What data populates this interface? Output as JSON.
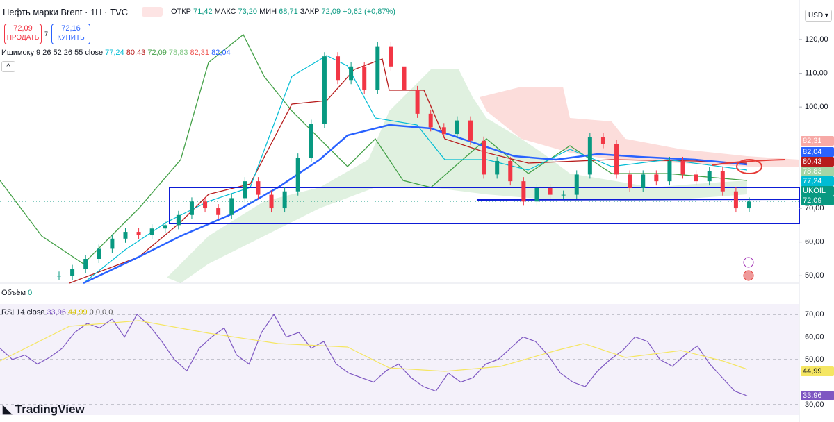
{
  "header": {
    "title": "Нефть марки Brent · 1Н · TVC",
    "ohlc": [
      {
        "label": "ОТКР",
        "value": "71,42"
      },
      {
        "label": "МАКС",
        "value": "73,20"
      },
      {
        "label": "МИН",
        "value": "68,71"
      },
      {
        "label": "ЗАКР",
        "value": "72,09"
      }
    ],
    "change": "+0,62 (+0,87%)",
    "currency": "USD"
  },
  "trade": {
    "sell_price": "72,09",
    "sell_label": "ПРОДАТЬ",
    "spread": "7",
    "buy_price": "72,16",
    "buy_label": "КУПИТЬ"
  },
  "ichimoku": {
    "name": "Ишимоку 9 26 52 26 55 close",
    "values": [
      "77,24",
      "80,43",
      "72,09",
      "78,83",
      "82,31",
      "82,04"
    ]
  },
  "volume": {
    "name": "Объём",
    "value": "0"
  },
  "rsi_legend": {
    "name": "RSI 14 close",
    "values": [
      "33,96",
      "44,99",
      "0",
      "0",
      "0",
      "0"
    ]
  },
  "price_labels": [
    {
      "text": "82,31",
      "color": "#f7a9a6"
    },
    {
      "text": "82,04",
      "color": "#2962ff"
    },
    {
      "text": "80,43",
      "color": "#b71c1c"
    },
    {
      "text": "78,83",
      "color": "#a5d6a7"
    },
    {
      "text": "77,24",
      "color": "#00bcd4"
    },
    {
      "text": "UKOIL",
      "color": "#089981"
    },
    {
      "text": "72,09",
      "color": "#089981"
    }
  ],
  "rsi_labels": [
    {
      "text": "44,99",
      "color": "#f5e663"
    },
    {
      "text": "33,96",
      "color": "#7e57c2"
    }
  ],
  "brand": "TradingView",
  "chart_data": {
    "type": "candlestick",
    "values": [
      50,
      52,
      55,
      58,
      61,
      63,
      62,
      64,
      65,
      68,
      72,
      70,
      68,
      73,
      78,
      74,
      70,
      75,
      85,
      95,
      115,
      108,
      112,
      105,
      118,
      112,
      105,
      98,
      94,
      92,
      96,
      90,
      80,
      84,
      78,
      72,
      76,
      74,
      74,
      80,
      91,
      89,
      80,
      76,
      80,
      78,
      84,
      80,
      78,
      81,
      75,
      70,
      72
    ],
    "ylim": [
      47.8,
      131.7
    ],
    "yticks": [
      {
        "value": 120,
        "label": "120,00"
      },
      {
        "value": 110,
        "label": "110,00"
      },
      {
        "value": 100,
        "label": "100,00"
      },
      {
        "value": 70,
        "label": "70,00"
      },
      {
        "value": 60,
        "label": "60,00"
      },
      {
        "value": 50,
        "label": "50,00"
      }
    ]
  },
  "rsi_data": {
    "type": "line",
    "values": [
      55,
      50,
      52,
      48,
      51,
      55,
      62,
      66,
      64,
      68,
      60,
      70,
      65,
      58,
      50,
      45,
      55,
      60,
      64,
      52,
      48,
      62,
      70,
      60,
      62,
      55,
      58,
      48,
      44,
      42,
      40,
      45,
      48,
      42,
      38,
      36,
      44,
      40,
      42,
      48,
      50,
      55,
      60,
      58,
      52,
      44,
      40,
      38,
      45,
      50,
      54,
      60,
      58,
      50,
      47,
      52,
      56,
      48,
      42,
      36,
      33.96
    ],
    "ylim": [
      25.4,
      74.6
    ],
    "yticks": [
      {
        "value": 70,
        "label": "70,00"
      },
      {
        "value": 60,
        "label": "60,00"
      },
      {
        "value": 50,
        "label": "50,00"
      },
      {
        "value": 30,
        "label": "30,00"
      }
    ]
  }
}
